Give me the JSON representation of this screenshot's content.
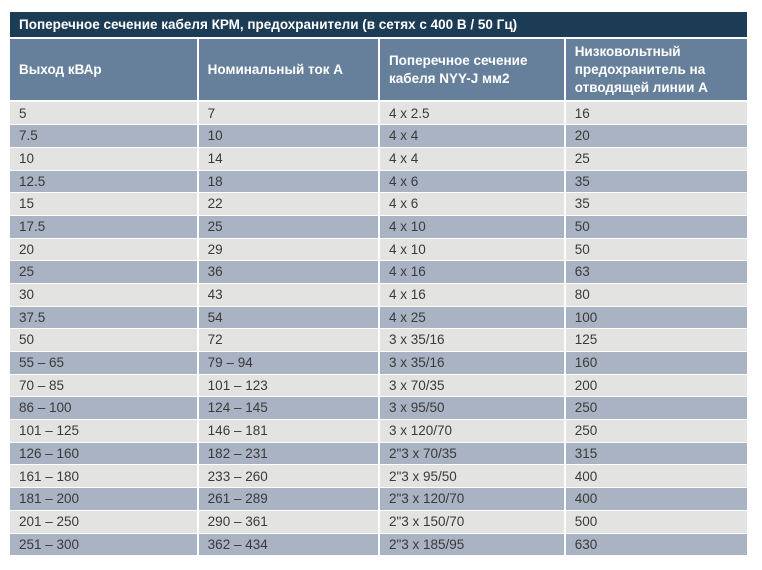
{
  "title": "Поперечное сечение кабеля КРМ, предохранители (в сетях с 400 В / 50 Гц)",
  "table": {
    "columns": [
      "Выход кВАр",
      "Номинальный ток А",
      "Поперечное сечение кабеля NYY-J мм2",
      "Низковольтный предохранитель на отводящей линии А"
    ],
    "rows": [
      [
        "5",
        "7",
        "4 x 2.5",
        "16"
      ],
      [
        "7.5",
        "10",
        "4 x 4",
        "20"
      ],
      [
        "10",
        "14",
        "4 x 4",
        "25"
      ],
      [
        "12.5",
        "18",
        "4 x 6",
        "35"
      ],
      [
        "15",
        "22",
        "4 x 6",
        "35"
      ],
      [
        "17.5",
        "25",
        "4 x 10",
        "50"
      ],
      [
        "20",
        "29",
        "4 x 10",
        "50"
      ],
      [
        "25",
        "36",
        "4 x 16",
        "63"
      ],
      [
        "30",
        "43",
        "4 x 16",
        "80"
      ],
      [
        "37.5",
        "54",
        "4 x 25",
        "100"
      ],
      [
        "50",
        "72",
        "3 x 35/16",
        "125"
      ],
      [
        "55 – 65",
        "79 – 94",
        "3 x 35/16",
        "160"
      ],
      [
        "70 – 85",
        "101 – 123",
        "3 x 70/35",
        "200"
      ],
      [
        "86 – 100",
        "124 – 145",
        "3 x 95/50",
        "250"
      ],
      [
        "101 – 125",
        "146 – 181",
        "3 x 120/70",
        "250"
      ],
      [
        "126 – 160",
        "182 – 231",
        "2\"3 x 70/35",
        "315"
      ],
      [
        "161 – 180",
        "233 – 260",
        "2\"3 x 95/50",
        "400"
      ],
      [
        "181 – 200",
        "261 – 289",
        "2\"3 x 120/70",
        "400"
      ],
      [
        "201 – 250",
        "290 – 361",
        "2\"3 x 150/70",
        "500"
      ],
      [
        "251 – 300",
        "362 – 434",
        "2\"3 x 185/95",
        "630"
      ]
    ]
  },
  "colors": {
    "title_bar_bg": "#1c3b55",
    "header_bg": "#66809c",
    "row_gray": "#e3e3e2",
    "row_blue": "#aab3c3",
    "header_text": "#ffffff",
    "cell_text": "#3a3a3a",
    "separator": "#ffffff",
    "page_bg": "#ffffff"
  }
}
